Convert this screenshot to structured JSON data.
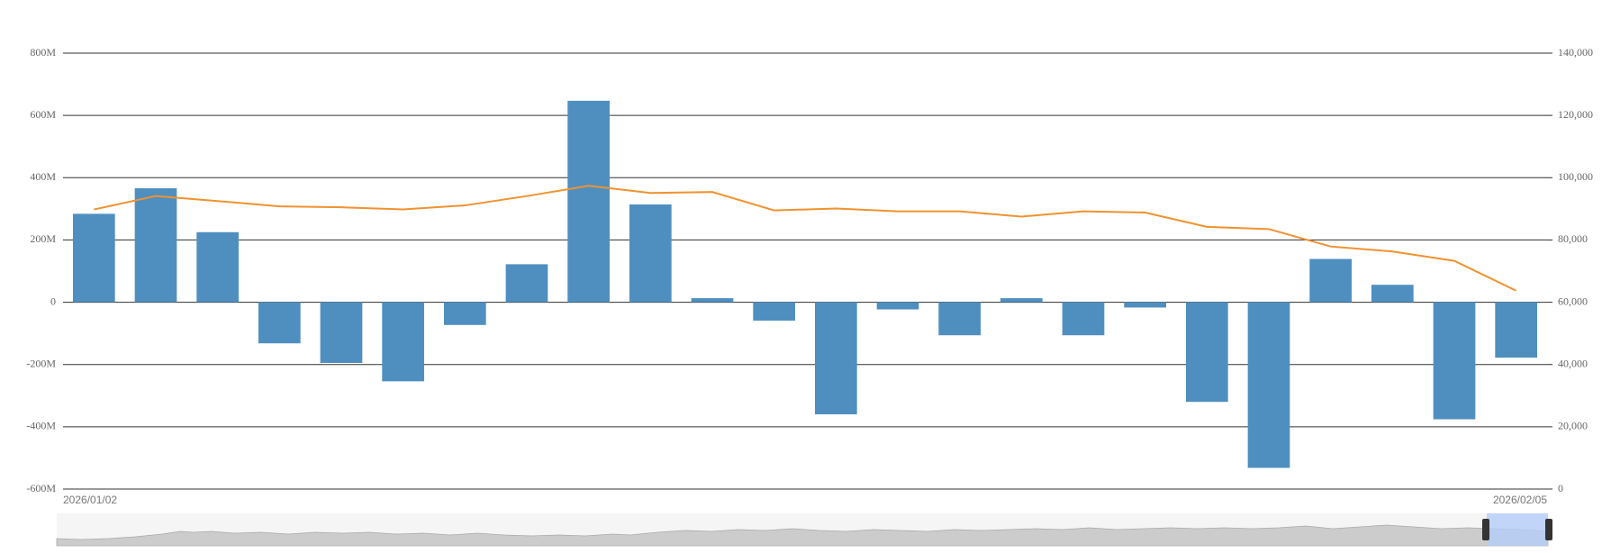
{
  "chart_data": {
    "type": "bar-line",
    "categories": [
      null,
      null,
      null,
      null,
      null,
      null,
      null,
      null,
      null,
      null,
      null,
      null,
      null,
      null,
      null,
      null,
      null,
      null,
      null,
      null,
      null,
      null,
      null,
      null
    ],
    "x_range_labels": [
      "2026/01/02",
      "2026/02/05"
    ],
    "series": [
      {
        "type": "bar",
        "color": "#4f8fc0",
        "axis": "y",
        "values": [
          284000000,
          366000000,
          225000000,
          -132000000,
          -195000000,
          -254000000,
          -73000000,
          122000000,
          647000000,
          314000000,
          13000000,
          -59000000,
          -360000000,
          -23000000,
          -106000000,
          13000000,
          -106000000,
          -17000000,
          -320000000,
          -532000000,
          139000000,
          56000000,
          -376000000,
          -178000000
        ]
      },
      {
        "type": "line",
        "color": "#f0922f",
        "axis": "y2",
        "values": [
          89800,
          94100,
          92500,
          90800,
          90500,
          89800,
          91100,
          94100,
          97400,
          95100,
          95400,
          89500,
          90100,
          89200,
          89200,
          87500,
          89200,
          88800,
          84200,
          83500,
          77900,
          76300,
          73300,
          63700
        ]
      }
    ],
    "ylim": [
      -600000000,
      800000000
    ],
    "yticks": [
      {
        "value": -600000000,
        "label": "-600M"
      },
      {
        "value": -400000000,
        "label": "-400M"
      },
      {
        "value": -200000000,
        "label": "-200M"
      },
      0,
      {
        "value": 200000000,
        "label": "200M"
      },
      {
        "value": 400000000,
        "label": "400M"
      },
      {
        "value": 600000000,
        "label": "600M"
      },
      {
        "value": 800000000,
        "label": "800M"
      }
    ],
    "y2lim": [
      0,
      140000
    ],
    "y2ticks": [
      0,
      {
        "value": 20000,
        "label": "20,000"
      },
      {
        "value": 40000,
        "label": "40,000"
      },
      {
        "value": 60000,
        "label": "60,000"
      },
      {
        "value": 80000,
        "label": "80,000"
      },
      {
        "value": 100000,
        "label": "100,000"
      },
      {
        "value": 120000,
        "label": "120,000"
      },
      {
        "value": 140000,
        "label": "140,000"
      }
    ],
    "grid": true
  }
}
